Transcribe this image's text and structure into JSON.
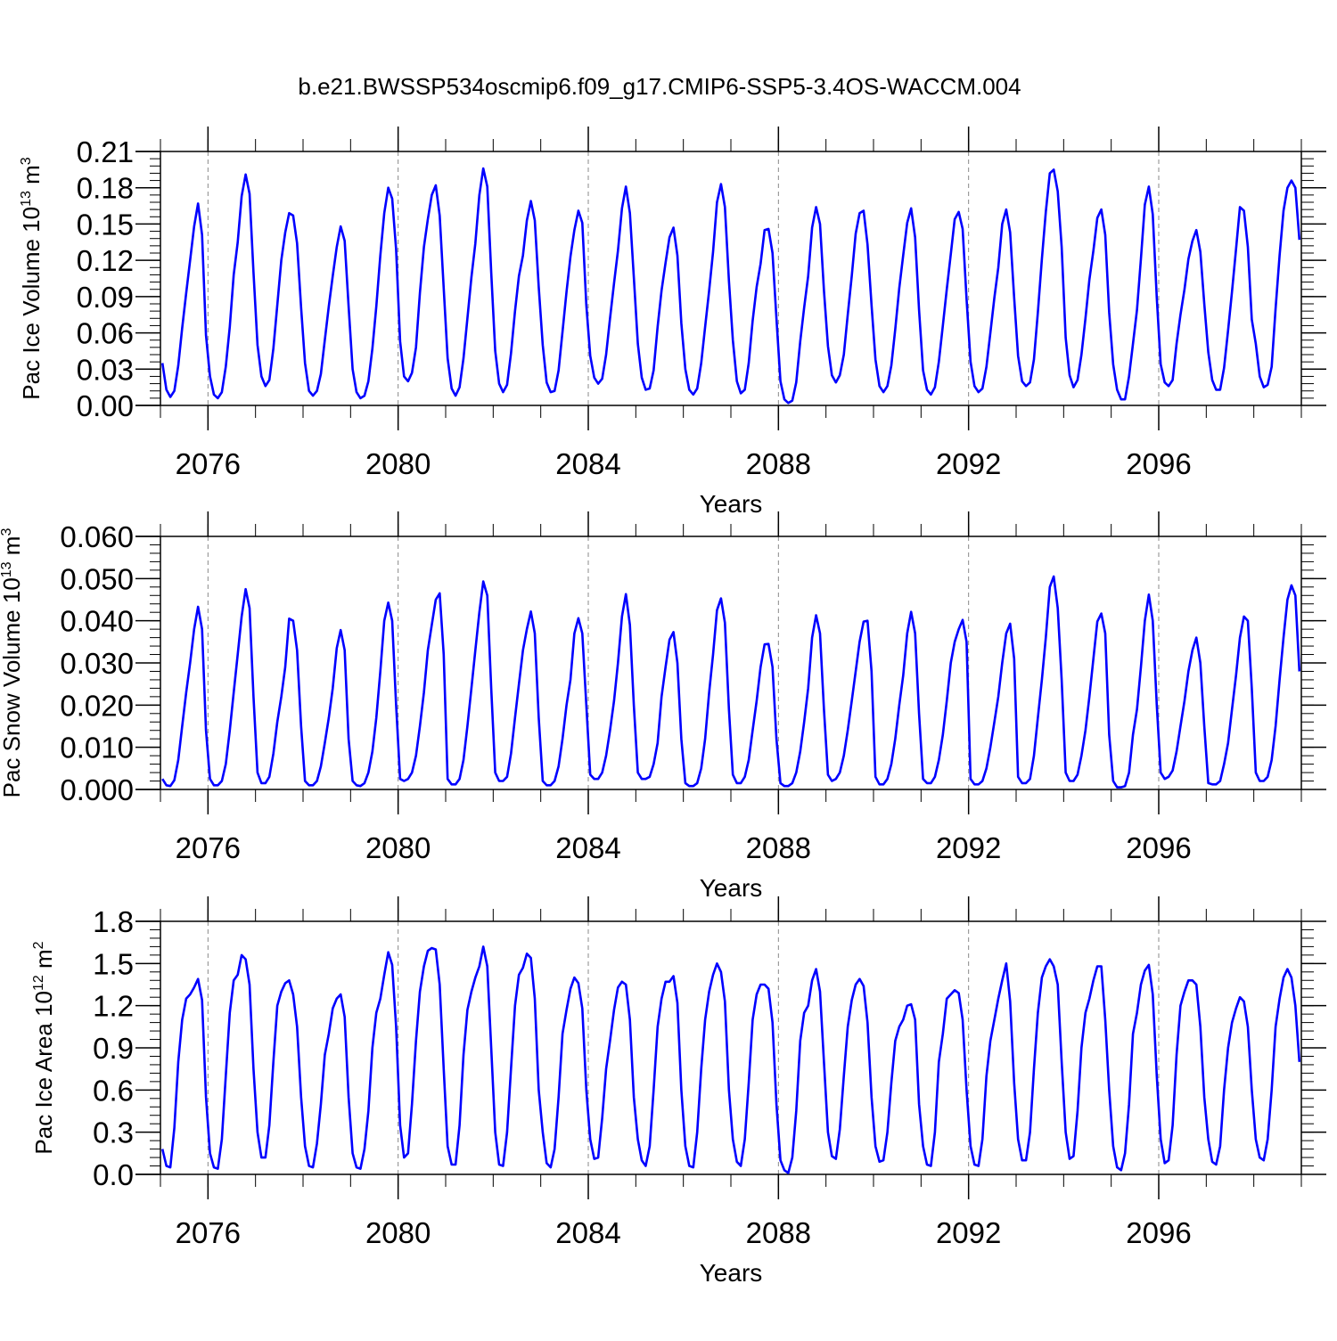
{
  "title": "b.e21.BWSSP534oscmip6.f09_g17.CMIP6-SSP5-3.4OS-WACCM.004",
  "colors": {
    "series": "#0000ff",
    "axis": "#000000",
    "grid": "#888888"
  },
  "chart_data": [
    {
      "type": "line",
      "ylabel_main": "Pac Ice Volume 10",
      "ylabel_exp": "13",
      "ylabel_unit": " m",
      "ylabel_unit_exp": "3",
      "xlabel": "Years",
      "xlim": [
        2075.0,
        2099.0
      ],
      "ylim": [
        0.0,
        0.21
      ],
      "xticks": [
        2076,
        2080,
        2084,
        2088,
        2092,
        2096
      ],
      "xtick_labels": [
        "2076",
        "2080",
        "2084",
        "2088",
        "2092",
        "2096"
      ],
      "yticks": [
        0.0,
        0.03,
        0.06,
        0.09,
        0.12,
        0.15,
        0.18,
        0.21
      ],
      "ytick_labels": [
        "0.00",
        "0.03",
        "0.06",
        "0.09",
        "0.12",
        "0.15",
        "0.18",
        "0.21"
      ],
      "grid": "vertical dashed at labelled years",
      "series": [
        {
          "x_start": 2075.0417,
          "x_step": 0.0833333,
          "values": [
            0.035,
            0.013,
            0.007,
            0.012,
            0.033,
            0.064,
            0.093,
            0.12,
            0.148,
            0.167,
            0.141,
            0.058,
            0.024,
            0.009,
            0.006,
            0.011,
            0.032,
            0.065,
            0.108,
            0.135,
            0.173,
            0.191,
            0.175,
            0.11,
            0.05,
            0.024,
            0.016,
            0.021,
            0.047,
            0.083,
            0.12,
            0.143,
            0.159,
            0.157,
            0.134,
            0.081,
            0.035,
            0.012,
            0.008,
            0.012,
            0.026,
            0.054,
            0.082,
            0.107,
            0.131,
            0.148,
            0.136,
            0.082,
            0.03,
            0.011,
            0.006,
            0.008,
            0.02,
            0.047,
            0.082,
            0.124,
            0.159,
            0.18,
            0.171,
            0.129,
            0.053,
            0.024,
            0.02,
            0.027,
            0.048,
            0.093,
            0.131,
            0.154,
            0.174,
            0.182,
            0.157,
            0.097,
            0.039,
            0.014,
            0.008,
            0.015,
            0.039,
            0.072,
            0.106,
            0.134,
            0.174,
            0.196,
            0.181,
            0.11,
            0.045,
            0.018,
            0.011,
            0.017,
            0.043,
            0.078,
            0.107,
            0.124,
            0.153,
            0.169,
            0.153,
            0.098,
            0.05,
            0.019,
            0.011,
            0.012,
            0.029,
            0.061,
            0.094,
            0.123,
            0.145,
            0.161,
            0.151,
            0.083,
            0.041,
            0.023,
            0.018,
            0.022,
            0.042,
            0.072,
            0.101,
            0.128,
            0.163,
            0.181,
            0.159,
            0.106,
            0.051,
            0.023,
            0.013,
            0.014,
            0.029,
            0.065,
            0.095,
            0.118,
            0.139,
            0.147,
            0.124,
            0.068,
            0.03,
            0.013,
            0.009,
            0.014,
            0.035,
            0.065,
            0.095,
            0.127,
            0.168,
            0.183,
            0.164,
            0.103,
            0.054,
            0.02,
            0.01,
            0.013,
            0.035,
            0.07,
            0.098,
            0.117,
            0.145,
            0.146,
            0.126,
            0.072,
            0.02,
            0.005,
            0.002,
            0.004,
            0.019,
            0.053,
            0.081,
            0.107,
            0.147,
            0.164,
            0.15,
            0.095,
            0.049,
            0.025,
            0.019,
            0.025,
            0.042,
            0.075,
            0.107,
            0.142,
            0.159,
            0.161,
            0.133,
            0.083,
            0.038,
            0.016,
            0.011,
            0.016,
            0.033,
            0.063,
            0.097,
            0.124,
            0.151,
            0.163,
            0.139,
            0.079,
            0.029,
            0.013,
            0.009,
            0.015,
            0.036,
            0.066,
            0.096,
            0.125,
            0.154,
            0.16,
            0.146,
            0.088,
            0.036,
            0.016,
            0.011,
            0.014,
            0.032,
            0.06,
            0.089,
            0.114,
            0.15,
            0.162,
            0.143,
            0.089,
            0.041,
            0.02,
            0.016,
            0.019,
            0.038,
            0.077,
            0.121,
            0.16,
            0.192,
            0.195,
            0.177,
            0.131,
            0.056,
            0.025,
            0.015,
            0.021,
            0.042,
            0.072,
            0.104,
            0.128,
            0.155,
            0.162,
            0.141,
            0.077,
            0.034,
            0.013,
            0.005,
            0.005,
            0.024,
            0.051,
            0.079,
            0.121,
            0.166,
            0.181,
            0.158,
            0.089,
            0.034,
            0.019,
            0.016,
            0.021,
            0.051,
            0.075,
            0.096,
            0.121,
            0.136,
            0.145,
            0.127,
            0.084,
            0.044,
            0.021,
            0.013,
            0.013,
            0.031,
            0.062,
            0.094,
            0.129,
            0.164,
            0.161,
            0.131,
            0.071,
            0.051,
            0.024,
            0.015,
            0.017,
            0.032,
            0.08,
            0.124,
            0.161,
            0.18,
            0.186,
            0.18,
            0.137
          ]
        }
      ]
    },
    {
      "type": "line",
      "ylabel_main": "Pac Snow Volume 10",
      "ylabel_exp": "13",
      "ylabel_unit": " m",
      "ylabel_unit_exp": "3",
      "xlabel": "Years",
      "xlim": [
        2075.0,
        2099.0
      ],
      "ylim": [
        0.0,
        0.06
      ],
      "xticks": [
        2076,
        2080,
        2084,
        2088,
        2092,
        2096
      ],
      "xtick_labels": [
        "2076",
        "2080",
        "2084",
        "2088",
        "2092",
        "2096"
      ],
      "yticks": [
        0.0,
        0.01,
        0.02,
        0.03,
        0.04,
        0.05,
        0.06
      ],
      "ytick_labels": [
        "0.000",
        "0.010",
        "0.020",
        "0.030",
        "0.040",
        "0.050",
        "0.060"
      ],
      "grid": "vertical dashed at labelled years",
      "series": [
        {
          "x_start": 2075.0417,
          "x_step": 0.0833333,
          "values": [
            0.0025,
            0.001,
            0.0008,
            0.0022,
            0.007,
            0.015,
            0.023,
            0.03,
            0.038,
            0.0433,
            0.038,
            0.014,
            0.0025,
            0.001,
            0.001,
            0.002,
            0.006,
            0.014,
            0.023,
            0.032,
            0.041,
            0.0475,
            0.043,
            0.022,
            0.004,
            0.0015,
            0.0015,
            0.003,
            0.0085,
            0.016,
            0.022,
            0.029,
            0.0405,
            0.04,
            0.033,
            0.015,
            0.002,
            0.001,
            0.001,
            0.002,
            0.0055,
            0.011,
            0.017,
            0.024,
            0.0335,
            0.0378,
            0.033,
            0.012,
            0.002,
            0.001,
            0.0008,
            0.0015,
            0.004,
            0.009,
            0.017,
            0.028,
            0.04,
            0.0443,
            0.04,
            0.02,
            0.0025,
            0.002,
            0.0025,
            0.004,
            0.008,
            0.015,
            0.023,
            0.033,
            0.039,
            0.045,
            0.0465,
            0.032,
            0.0025,
            0.0012,
            0.0012,
            0.0025,
            0.007,
            0.015,
            0.024,
            0.033,
            0.042,
            0.0493,
            0.046,
            0.024,
            0.004,
            0.002,
            0.002,
            0.003,
            0.0085,
            0.017,
            0.025,
            0.033,
            0.038,
            0.0422,
            0.037,
            0.017,
            0.002,
            0.001,
            0.001,
            0.002,
            0.0055,
            0.012,
            0.02,
            0.026,
            0.037,
            0.0406,
            0.037,
            0.02,
            0.0035,
            0.0025,
            0.0025,
            0.004,
            0.008,
            0.014,
            0.021,
            0.03,
            0.041,
            0.0463,
            0.039,
            0.02,
            0.004,
            0.0025,
            0.0025,
            0.003,
            0.006,
            0.011,
            0.022,
            0.029,
            0.0355,
            0.0373,
            0.03,
            0.012,
            0.0015,
            0.0008,
            0.0008,
            0.0015,
            0.005,
            0.012,
            0.023,
            0.032,
            0.0425,
            0.0453,
            0.0395,
            0.019,
            0.0035,
            0.0015,
            0.0015,
            0.003,
            0.007,
            0.014,
            0.021,
            0.029,
            0.0344,
            0.0345,
            0.029,
            0.012,
            0.0015,
            0.0008,
            0.0008,
            0.0015,
            0.004,
            0.009,
            0.016,
            0.024,
            0.036,
            0.0413,
            0.037,
            0.019,
            0.0035,
            0.002,
            0.0025,
            0.004,
            0.008,
            0.014,
            0.021,
            0.028,
            0.035,
            0.0398,
            0.04,
            0.028,
            0.003,
            0.0012,
            0.0012,
            0.0025,
            0.006,
            0.012,
            0.02,
            0.027,
            0.037,
            0.0421,
            0.037,
            0.018,
            0.0025,
            0.0015,
            0.0015,
            0.003,
            0.007,
            0.013,
            0.021,
            0.03,
            0.035,
            0.038,
            0.0402,
            0.035,
            0.0025,
            0.0012,
            0.0012,
            0.002,
            0.005,
            0.01,
            0.016,
            0.022,
            0.03,
            0.037,
            0.0393,
            0.031,
            0.003,
            0.0015,
            0.0015,
            0.0025,
            0.008,
            0.017,
            0.026,
            0.036,
            0.048,
            0.0505,
            0.043,
            0.026,
            0.004,
            0.002,
            0.002,
            0.0035,
            0.008,
            0.014,
            0.022,
            0.031,
            0.0398,
            0.0417,
            0.037,
            0.013,
            0.002,
            0.0005,
            0.0005,
            0.0008,
            0.004,
            0.013,
            0.019,
            0.029,
            0.04,
            0.0462,
            0.04,
            0.02,
            0.004,
            0.0025,
            0.003,
            0.0045,
            0.009,
            0.015,
            0.021,
            0.028,
            0.033,
            0.036,
            0.03,
            0.015,
            0.0015,
            0.0012,
            0.0012,
            0.002,
            0.006,
            0.011,
            0.019,
            0.027,
            0.036,
            0.041,
            0.04,
            0.024,
            0.004,
            0.002,
            0.002,
            0.003,
            0.007,
            0.015,
            0.026,
            0.036,
            0.045,
            0.0484,
            0.046,
            0.028
          ]
        }
      ]
    },
    {
      "type": "line",
      "ylabel_main": "Pac Ice Area 10",
      "ylabel_exp": "12",
      "ylabel_unit": " m",
      "ylabel_unit_exp": "2",
      "xlabel": "Years",
      "xlim": [
        2075.0,
        2099.0
      ],
      "ylim": [
        0.0,
        1.8
      ],
      "xticks": [
        2076,
        2080,
        2084,
        2088,
        2092,
        2096
      ],
      "xtick_labels": [
        "2076",
        "2080",
        "2084",
        "2088",
        "2092",
        "2096"
      ],
      "yticks": [
        0.0,
        0.3,
        0.6,
        0.9,
        1.2,
        1.5,
        1.8
      ],
      "ytick_labels": [
        "0.0",
        "0.3",
        "0.6",
        "0.9",
        "1.2",
        "1.5",
        "1.8"
      ],
      "grid": "vertical dashed at labelled years",
      "series": [
        {
          "x_start": 2075.0417,
          "x_step": 0.0833333,
          "values": [
            0.18,
            0.06,
            0.05,
            0.33,
            0.8,
            1.1,
            1.25,
            1.28,
            1.33,
            1.39,
            1.24,
            0.55,
            0.15,
            0.05,
            0.04,
            0.25,
            0.7,
            1.15,
            1.38,
            1.42,
            1.56,
            1.53,
            1.35,
            0.75,
            0.3,
            0.12,
            0.12,
            0.35,
            0.8,
            1.2,
            1.3,
            1.36,
            1.38,
            1.28,
            1.05,
            0.55,
            0.2,
            0.06,
            0.05,
            0.22,
            0.5,
            0.85,
            1.0,
            1.18,
            1.25,
            1.28,
            1.12,
            0.55,
            0.15,
            0.05,
            0.04,
            0.18,
            0.45,
            0.9,
            1.15,
            1.25,
            1.42,
            1.58,
            1.49,
            1.05,
            0.35,
            0.12,
            0.15,
            0.5,
            0.95,
            1.3,
            1.48,
            1.59,
            1.61,
            1.6,
            1.35,
            0.75,
            0.2,
            0.07,
            0.07,
            0.35,
            0.85,
            1.17,
            1.3,
            1.4,
            1.48,
            1.62,
            1.48,
            0.9,
            0.3,
            0.07,
            0.06,
            0.3,
            0.75,
            1.2,
            1.42,
            1.47,
            1.57,
            1.54,
            1.25,
            0.6,
            0.3,
            0.08,
            0.05,
            0.18,
            0.55,
            1.0,
            1.17,
            1.32,
            1.4,
            1.36,
            1.18,
            0.6,
            0.25,
            0.11,
            0.12,
            0.4,
            0.75,
            0.95,
            1.17,
            1.33,
            1.37,
            1.35,
            1.1,
            0.55,
            0.25,
            0.1,
            0.06,
            0.2,
            0.6,
            1.05,
            1.25,
            1.37,
            1.37,
            1.41,
            1.22,
            0.6,
            0.2,
            0.06,
            0.05,
            0.3,
            0.75,
            1.1,
            1.3,
            1.42,
            1.5,
            1.44,
            1.23,
            0.6,
            0.25,
            0.09,
            0.06,
            0.25,
            0.65,
            1.1,
            1.28,
            1.35,
            1.35,
            1.32,
            1.08,
            0.5,
            0.1,
            0.03,
            0.01,
            0.12,
            0.45,
            0.95,
            1.15,
            1.2,
            1.38,
            1.46,
            1.3,
            0.8,
            0.3,
            0.13,
            0.11,
            0.32,
            0.7,
            1.05,
            1.24,
            1.35,
            1.39,
            1.34,
            1.08,
            0.55,
            0.2,
            0.09,
            0.1,
            0.3,
            0.65,
            0.95,
            1.05,
            1.1,
            1.2,
            1.21,
            1.1,
            0.5,
            0.2,
            0.07,
            0.06,
            0.3,
            0.8,
            1.0,
            1.25,
            1.28,
            1.31,
            1.29,
            1.1,
            0.6,
            0.2,
            0.07,
            0.06,
            0.25,
            0.7,
            0.95,
            1.1,
            1.25,
            1.38,
            1.5,
            1.23,
            0.65,
            0.25,
            0.1,
            0.1,
            0.3,
            0.75,
            1.15,
            1.4,
            1.48,
            1.53,
            1.48,
            1.35,
            0.8,
            0.3,
            0.11,
            0.13,
            0.45,
            0.9,
            1.15,
            1.25,
            1.38,
            1.48,
            1.48,
            1.1,
            0.6,
            0.2,
            0.05,
            0.03,
            0.15,
            0.5,
            1.0,
            1.15,
            1.35,
            1.45,
            1.49,
            1.28,
            0.7,
            0.25,
            0.08,
            0.1,
            0.35,
            0.85,
            1.2,
            1.3,
            1.38,
            1.38,
            1.35,
            1.05,
            0.55,
            0.25,
            0.09,
            0.07,
            0.2,
            0.6,
            0.9,
            1.08,
            1.18,
            1.26,
            1.23,
            1.05,
            0.6,
            0.25,
            0.12,
            0.1,
            0.25,
            0.6,
            1.05,
            1.25,
            1.4,
            1.46,
            1.4,
            1.2,
            0.8
          ]
        }
      ]
    }
  ]
}
